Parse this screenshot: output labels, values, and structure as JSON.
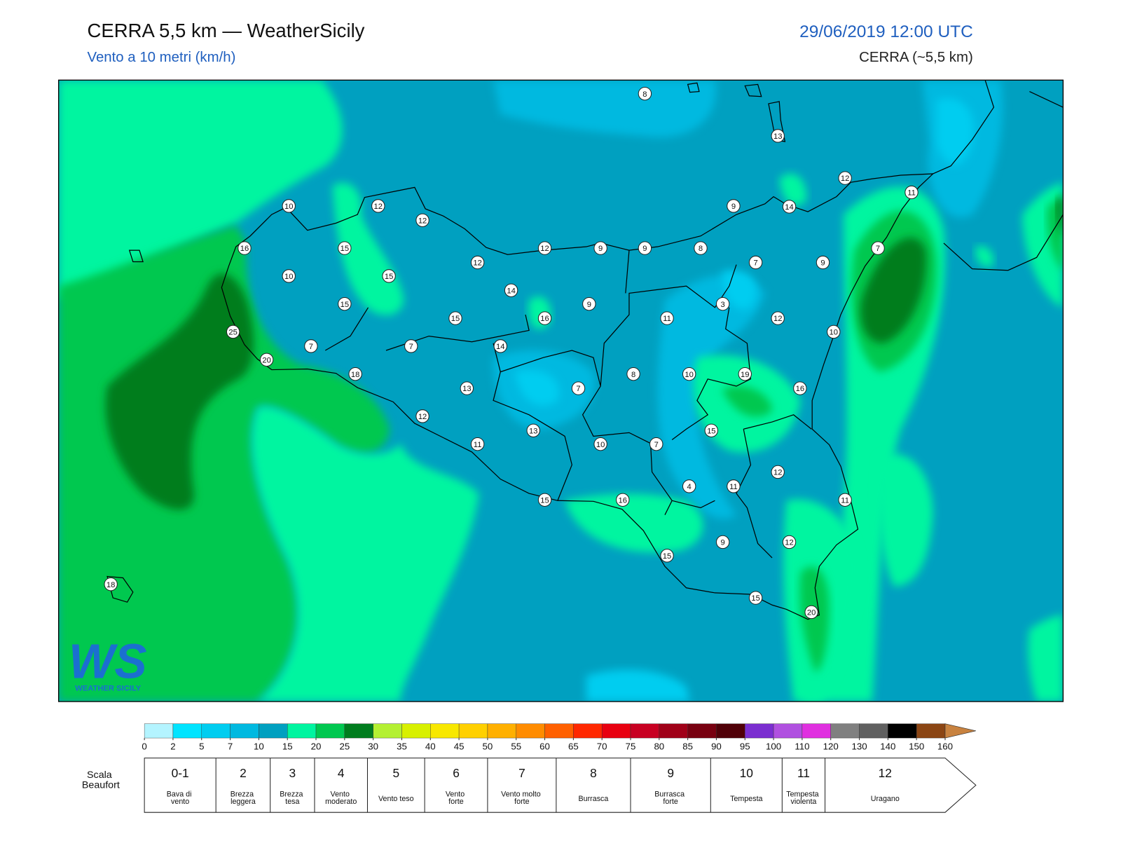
{
  "header": {
    "title": "CERRA 5,5 km — WeatherSicily",
    "subtitle": "Vento a 10 metri (km/h)",
    "datetime": "29/06/2019 12:00 UTC",
    "model": "CERRA (~5,5 km)"
  },
  "map": {
    "stations": [
      8,
      13,
      12,
      11,
      10,
      12,
      12,
      9,
      14,
      16,
      15,
      12,
      9,
      9,
      8,
      7,
      7,
      9,
      12,
      10,
      15,
      14,
      9,
      15,
      3,
      15,
      16,
      11,
      12,
      10,
      25,
      7,
      7,
      14,
      20,
      18,
      8,
      10,
      19,
      13,
      7,
      16,
      12,
      15,
      13,
      11,
      10,
      7,
      12,
      4,
      11,
      15,
      16,
      11,
      9,
      12,
      15,
      18,
      15,
      20
    ]
  },
  "logo": {
    "mark": "WS",
    "text": "WEATHER SICILY"
  },
  "colorbar": {
    "ticks": [
      0,
      2,
      5,
      7,
      10,
      15,
      20,
      25,
      30,
      35,
      40,
      45,
      50,
      55,
      60,
      65,
      70,
      75,
      80,
      85,
      90,
      95,
      100,
      110,
      120,
      130,
      140,
      150,
      160
    ],
    "colors": [
      "#b4f4ff",
      "#00e4ff",
      "#00cdf0",
      "#00b9e0",
      "#00a0c0",
      "#00f5a0",
      "#00c850",
      "#007d1e",
      "#b4f032",
      "#d8f000",
      "#f8e800",
      "#ffd000",
      "#ffb000",
      "#ff8c00",
      "#ff6000",
      "#ff2800",
      "#e80010",
      "#c80022",
      "#a00018",
      "#780010",
      "#500008",
      "#7b2ed0",
      "#b050e0",
      "#e030e0",
      "#808080",
      "#606060",
      "#000000",
      "#8b4513",
      "#c8823f"
    ]
  },
  "beaufort": {
    "label": "Scala\nBeaufort",
    "levels": [
      {
        "force": "0-1",
        "name": "Bava di\nvento"
      },
      {
        "force": "2",
        "name": "Brezza\nleggera"
      },
      {
        "force": "3",
        "name": "Brezza\ntesa"
      },
      {
        "force": "4",
        "name": "Vento\nmoderato"
      },
      {
        "force": "5",
        "name": "Vento teso"
      },
      {
        "force": "6",
        "name": "Vento\nforte"
      },
      {
        "force": "7",
        "name": "Vento molto\nforte"
      },
      {
        "force": "8",
        "name": "Burrasca"
      },
      {
        "force": "9",
        "name": "Burrasca\nforte"
      },
      {
        "force": "10",
        "name": "Tempesta"
      },
      {
        "force": "11",
        "name": "Tempesta\nviolenta"
      },
      {
        "force": "12",
        "name": "Uragano"
      }
    ]
  }
}
